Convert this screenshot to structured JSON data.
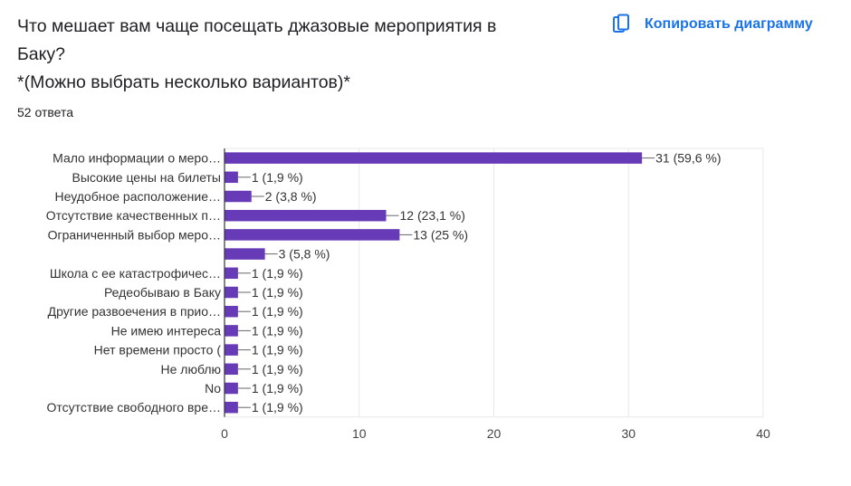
{
  "question": {
    "title_lines": [
      "Что мешает вам чаще посещать джазовые мероприятия в",
      "Баку?",
      "*(Можно выбрать несколько вариантов)*"
    ],
    "responses": "52 ответа"
  },
  "copy_chart": {
    "label": "Копировать диаграмму",
    "icon": "copy-icon",
    "color": "#1a73e8"
  },
  "chart_data": {
    "type": "bar",
    "orientation": "horizontal",
    "categories": [
      "Мало информации о меро…",
      "Высокие цены на билеты",
      "Неудобное расположение…",
      "Отсутствие качественных п…",
      "Ограниченный выбор меро…",
      "",
      "Школа с ее катастрофичес…",
      "Редеобываю в Баку",
      "Другие развоечения в прио…",
      "Не имею интереса",
      "Нет времени просто (",
      "Не люблю",
      "No",
      "Отсутствие свободного вре…"
    ],
    "values": [
      31,
      1,
      2,
      12,
      13,
      3,
      1,
      1,
      1,
      1,
      1,
      1,
      1,
      1
    ],
    "data_labels": [
      "31 (59,6 %)",
      "1 (1,9 %)",
      "2 (3,8 %)",
      "12 (23,1 %)",
      "13 (25 %)",
      "3 (5,8 %)",
      "1 (1,9 %)",
      "1 (1,9 %)",
      "1 (1,9 %)",
      "1 (1,9 %)",
      "1 (1,9 %)",
      "1 (1,9 %)",
      "1 (1,9 %)",
      "1 (1,9 %)"
    ],
    "xlim": [
      0,
      40
    ],
    "xticks": [
      0,
      10,
      20,
      30,
      40
    ],
    "grid": true,
    "legend": "none",
    "bar_color": "#673ab7"
  }
}
